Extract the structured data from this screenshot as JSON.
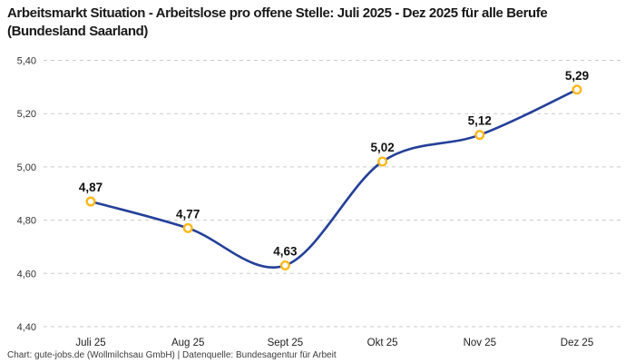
{
  "header": {
    "title": "Arbeitsmarkt Situation - Arbeitslose pro offene Stelle: Juli 2025 - Dez 2025 für alle Berufe (Bundesland Saarland)"
  },
  "footer": {
    "text": "Chart: gute-jobs.de (Wollmilchsau GmbH) | Datenquelle: Bundesagentur für Arbeit"
  },
  "chart_data": {
    "type": "line",
    "title": "Arbeitsmarkt Situation - Arbeitslose pro offene Stelle: Juli 2025 - Dez 2025 für alle Berufe (Bundesland Saarland)",
    "categories": [
      "Juli 25",
      "Aug 25",
      "Sept 25",
      "Okt 25",
      "Nov 25",
      "Dez 25"
    ],
    "values": [
      4.87,
      4.77,
      4.63,
      5.02,
      5.12,
      5.29
    ],
    "value_labels": [
      "4,87",
      "4,77",
      "4,63",
      "5,02",
      "5,12",
      "5,29"
    ],
    "xlabel": "",
    "ylabel": "",
    "ylim": [
      4.4,
      5.4
    ],
    "yticks": [
      {
        "value": 4.4,
        "label": "4,40"
      },
      {
        "value": 4.6,
        "label": "4,60"
      },
      {
        "value": 4.8,
        "label": "4,80"
      },
      {
        "value": 5.0,
        "label": "5,00"
      },
      {
        "value": 5.2,
        "label": "5,20"
      },
      {
        "value": 5.4,
        "label": "5,40"
      }
    ],
    "grid": "horizontal-dashed",
    "legend": "none",
    "line_style": "smooth",
    "colors": {
      "line": "#24409A",
      "marker_fill": "#ffffff",
      "marker_stroke": "#FCB81C",
      "grid": "#cbcbcb",
      "point_label": "#111111",
      "tick_label": "#333333",
      "title": "#191919",
      "footer": "#3c3c3c",
      "background": "#ffffff"
    }
  }
}
